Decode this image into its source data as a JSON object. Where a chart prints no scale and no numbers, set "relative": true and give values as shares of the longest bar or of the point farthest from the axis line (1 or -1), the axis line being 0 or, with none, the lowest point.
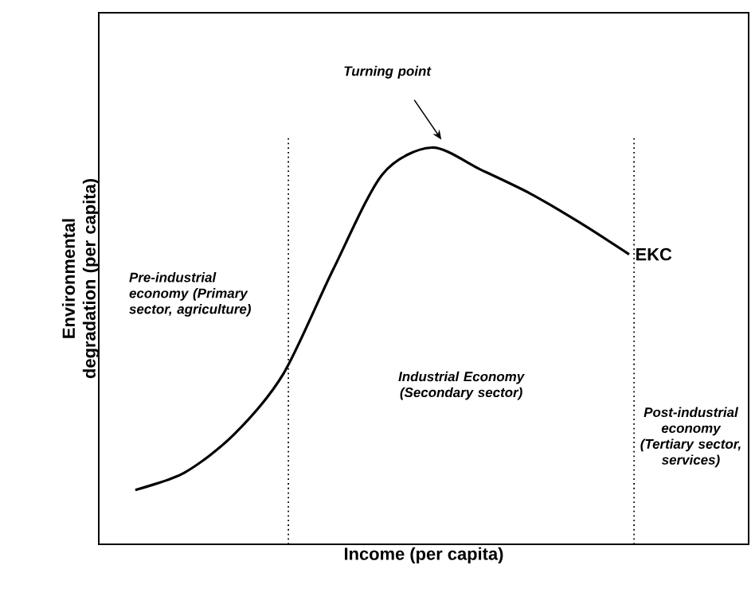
{
  "chart_data": {
    "type": "line",
    "relative": true,
    "xlabel": "Income (per capita)",
    "ylabel": "Environmental degradation (per capita)",
    "categories": [
      null,
      null,
      null,
      null,
      null,
      null,
      null,
      null,
      null,
      null,
      null
    ],
    "series": [
      {
        "name": "EKC",
        "color": "#000000",
        "values": [
          0.137,
          0.181,
          0.277,
          0.43,
          0.691,
          0.932,
          1.0,
          0.944,
          0.884,
          0.811,
          0.731
        ]
      }
    ],
    "annotations": [
      "Turning point",
      "Pre-industrial economy (Primary sector, agriculture)",
      "Industrial Economy (Secondary sector)",
      "Post-industrial economy (Tertiary sector, services)"
    ],
    "marker": "none",
    "line_style": "solid"
  }
}
